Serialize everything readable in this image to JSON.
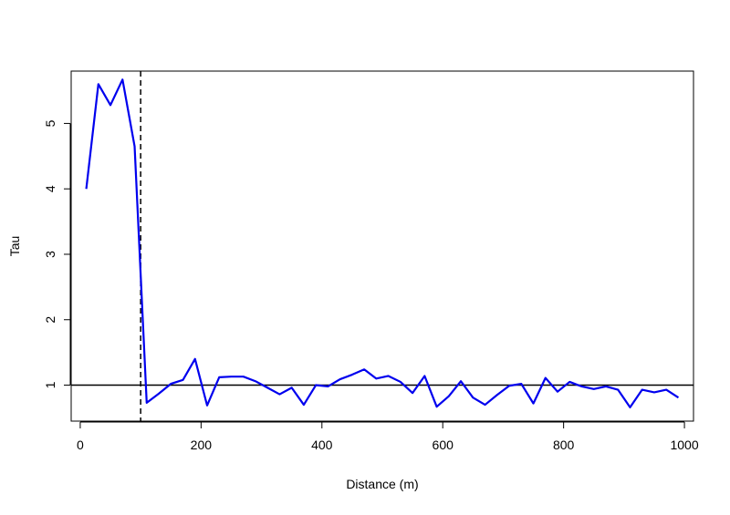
{
  "chart_data": {
    "type": "line",
    "title": "",
    "xlabel": "Distance (m)",
    "ylabel": "Tau",
    "xlim": [
      -15,
      1015
    ],
    "ylim": [
      0.45,
      5.8
    ],
    "xticks": [
      0,
      200,
      400,
      600,
      800,
      1000
    ],
    "yticks": [
      1,
      2,
      3,
      4,
      5
    ],
    "xtick_labels": [
      "0",
      "200",
      "400",
      "600",
      "800",
      "1000"
    ],
    "ytick_labels": [
      "1",
      "2",
      "3",
      "4",
      "5"
    ],
    "grid": false,
    "legend": "none",
    "series": [
      {
        "color": "#0000ee",
        "x": [
          10,
          30,
          50,
          70,
          90,
          110,
          130,
          150,
          170,
          190,
          210,
          230,
          250,
          270,
          290,
          310,
          330,
          350,
          370,
          390,
          410,
          430,
          450,
          470,
          490,
          510,
          530,
          550,
          570,
          590,
          610,
          630,
          650,
          670,
          690,
          710,
          730,
          750,
          770,
          790,
          810,
          830,
          850,
          870,
          890,
          910,
          930,
          950,
          970,
          990
        ],
        "y": [
          4.0,
          5.6,
          5.28,
          5.67,
          4.65,
          0.73,
          0.87,
          1.02,
          1.08,
          1.4,
          0.69,
          1.12,
          1.13,
          1.13,
          1.06,
          0.96,
          0.86,
          0.96,
          0.7,
          1.0,
          0.98,
          1.09,
          1.16,
          1.24,
          1.1,
          1.14,
          1.05,
          0.88,
          1.14,
          0.67,
          0.83,
          1.06,
          0.81,
          0.7,
          0.85,
          0.99,
          1.02,
          0.72,
          1.11,
          0.9,
          1.05,
          0.98,
          0.94,
          0.98,
          0.93,
          0.66,
          0.93,
          0.89,
          0.93,
          0.81
        ]
      }
    ],
    "reference_lines": [
      {
        "orientation": "horizontal",
        "value": 1,
        "style": "solid",
        "color": "#000000"
      },
      {
        "orientation": "vertical",
        "value": 100,
        "style": "dashed",
        "color": "#000000"
      }
    ]
  }
}
